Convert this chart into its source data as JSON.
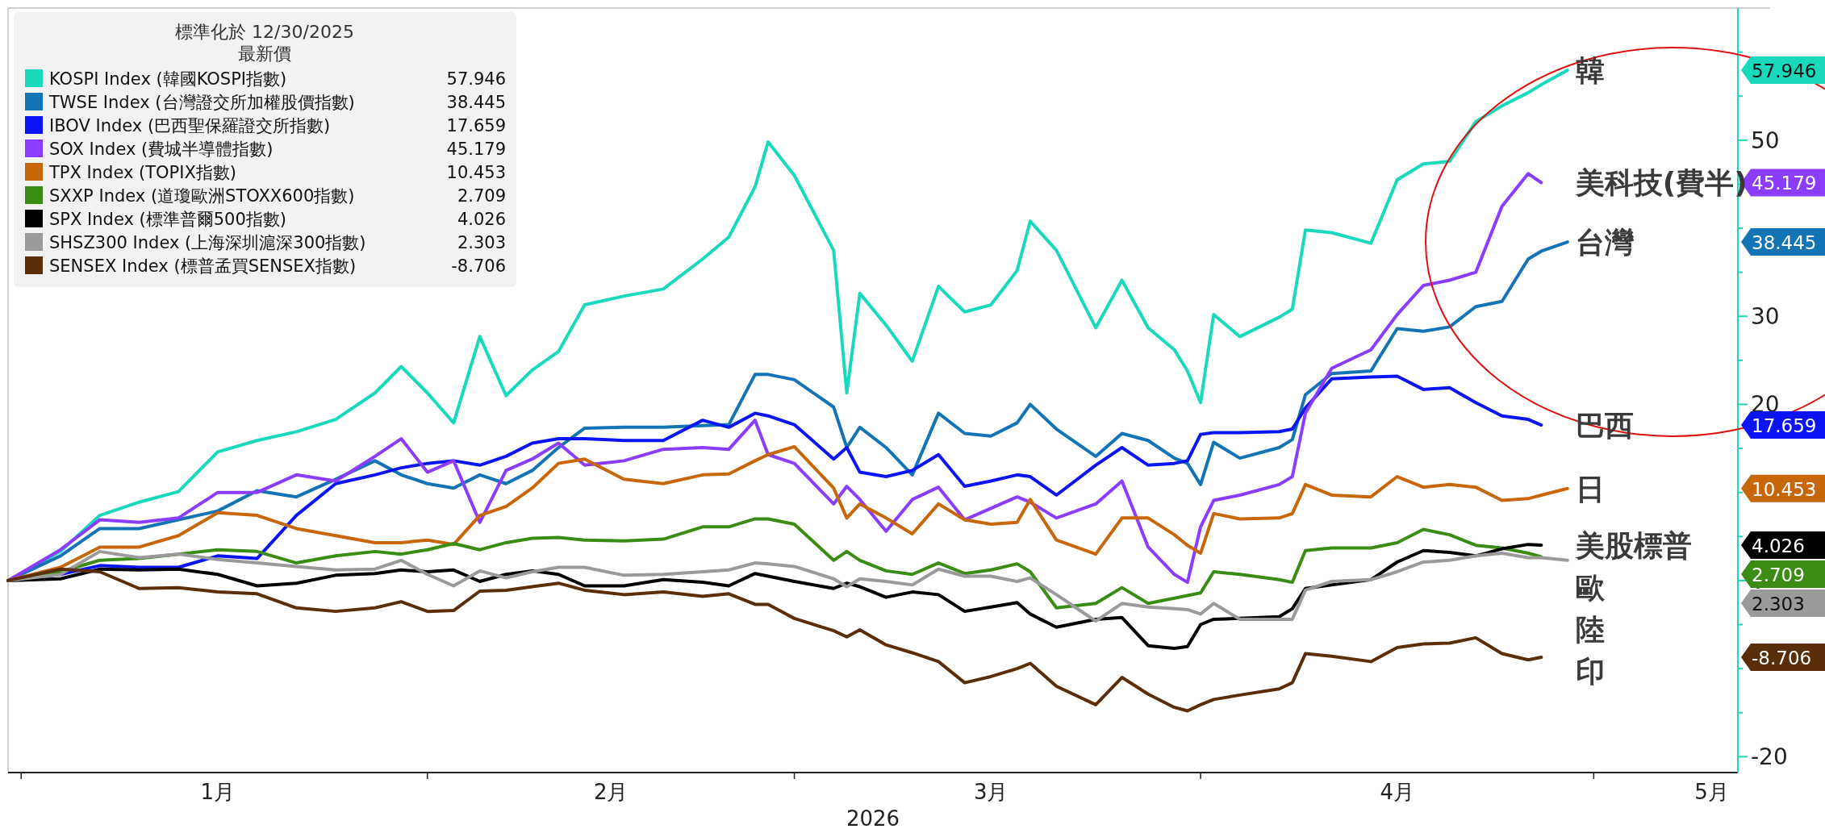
{
  "chart_data": {
    "type": "line",
    "legend_title": "標準化於 12/30/2025\n最新價",
    "legend": "top left",
    "xlabel": "2026",
    "x": [
      "2025-12-31",
      "2026-01-04",
      "2026-01-07",
      "2026-01-10",
      "2026-01-13",
      "2026-01-16",
      "2026-01-19",
      "2026-01-22",
      "2026-01-25",
      "2026-01-28",
      "2026-01-30",
      "2026-02-01",
      "2026-02-03",
      "2026-02-05",
      "2026-02-07",
      "2026-02-09",
      "2026-02-11",
      "2026-02-13",
      "2026-02-16",
      "2026-02-19",
      "2026-02-22",
      "2026-02-24",
      "2026-02-26",
      "2026-02-27",
      "2026-03-01",
      "2026-03-04",
      "2026-03-05",
      "2026-03-06",
      "2026-03-08",
      "2026-03-10",
      "2026-03-12",
      "2026-03-14",
      "2026-03-16",
      "2026-03-18",
      "2026-03-19",
      "2026-03-21",
      "2026-03-24",
      "2026-03-26",
      "2026-03-28",
      "2026-03-30",
      "2026-03-31",
      "2026-04-01",
      "2026-04-02",
      "2026-04-04",
      "2026-04-07",
      "2026-04-08",
      "2026-04-09",
      "2026-04-11",
      "2026-04-14",
      "2026-04-16",
      "2026-04-18",
      "2026-04-20",
      "2026-04-22",
      "2026-04-24",
      "2026-04-26",
      "2026-04-27",
      "2026-04-29"
    ],
    "xlim": [
      "2025-12-31",
      "2026-05-12"
    ],
    "xticks": [
      {
        "value": "2026-01-01",
        "label": null
      },
      {
        "value": "2026-01-16",
        "label": "1月"
      },
      {
        "value": "2026-02-01",
        "label": null
      },
      {
        "value": "2026-02-15",
        "label": "2月"
      },
      {
        "value": "2026-03-01",
        "label": null
      },
      {
        "value": "2026-03-16",
        "label": "3月"
      },
      {
        "value": "2026-04-01",
        "label": null
      },
      {
        "value": "2026-04-16",
        "label": "4月"
      },
      {
        "value": "2026-05-01",
        "label": null
      },
      {
        "value": "2026-05-10",
        "label": "5月"
      }
    ],
    "ylim": [
      -21.8,
      65
    ],
    "yticks": [
      -20,
      {
        "value": -15,
        "label": null
      },
      {
        "value": -10,
        "label": null
      },
      {
        "value": -5,
        "label": null
      },
      0,
      {
        "value": 5,
        "label": null
      },
      {
        "value": 10,
        "label": null
      },
      {
        "value": 15,
        "label": null
      },
      20,
      {
        "value": 25,
        "label": null
      },
      30,
      {
        "value": 35,
        "label": null
      },
      {
        "value": 40,
        "label": null
      },
      {
        "value": 45,
        "label": null
      },
      50,
      {
        "value": 55,
        "label": null
      },
      {
        "value": 60,
        "label": null
      }
    ],
    "series": [
      {
        "name": "KOSPI Index (韓國KOSPI指數)",
        "color": "#19d9bd",
        "values": [
          0,
          3.3,
          7.4,
          8.9,
          10.1,
          14.6,
          15.9,
          16.9,
          18.3,
          21.3,
          24.3,
          21.3,
          17.9,
          27.7,
          21.0,
          23.9,
          26.0,
          31.3,
          32.3,
          33.1,
          36.5,
          39.0,
          44.7,
          49.8,
          46.0,
          37.5,
          21.3,
          32.6,
          29.0,
          24.9,
          33.4,
          30.5,
          31.3,
          35.2,
          40.8,
          37.5,
          28.7,
          34.1,
          28.7,
          26.2,
          23.8,
          20.2,
          30.2,
          27.7,
          29.9,
          30.8,
          39.8,
          39.5,
          38.3,
          45.5,
          47.3,
          47.6,
          52.1,
          53.9,
          55.4,
          56.3,
          57.946
        ]
      },
      {
        "name": "TWSE Index (台灣證交所加權股價指數)",
        "color": "#1274b4",
        "values": [
          0,
          2.8,
          5.9,
          5.9,
          6.9,
          7.9,
          10.2,
          9.5,
          11.5,
          13.6,
          12.0,
          11.0,
          10.5,
          12.0,
          11.0,
          12.5,
          15.1,
          17.3,
          17.4,
          17.4,
          17.6,
          17.7,
          23.4,
          23.4,
          22.8,
          19.7,
          15.1,
          17.4,
          15.1,
          12.0,
          19.0,
          16.7,
          16.4,
          17.9,
          20.0,
          17.2,
          14.1,
          16.7,
          15.9,
          13.9,
          13.3,
          10.9,
          15.7,
          13.9,
          15.1,
          16.0,
          21.1,
          23.5,
          23.8,
          28.6,
          28.3,
          28.8,
          31.1,
          31.7,
          36.5,
          37.4,
          38.445
        ]
      },
      {
        "name": "IBOV Index (巴西聖保羅證交所指數)",
        "color": "#0a14f5",
        "values": [
          0,
          0.7,
          1.7,
          1.5,
          1.5,
          2.8,
          2.5,
          7.4,
          11.0,
          12.0,
          12.8,
          13.3,
          13.6,
          13.1,
          14.1,
          15.6,
          16.1,
          16.1,
          15.9,
          15.9,
          18.2,
          17.4,
          19.0,
          18.7,
          17.7,
          13.8,
          15.1,
          12.3,
          11.8,
          12.5,
          14.3,
          10.7,
          11.3,
          12.0,
          11.8,
          9.7,
          13.1,
          15.1,
          13.1,
          13.3,
          13.6,
          16.6,
          16.8,
          16.8,
          16.9,
          17.2,
          19.6,
          22.9,
          23.1,
          23.2,
          21.7,
          21.9,
          20.2,
          18.7,
          18.3,
          17.659,
          null
        ]
      },
      {
        "name": "SOX Index (費城半導體指數)",
        "color": "#8a3cff",
        "values": [
          0,
          3.5,
          6.9,
          6.6,
          7.1,
          10.0,
          10.0,
          12.0,
          11.3,
          14.1,
          16.1,
          12.3,
          13.6,
          6.6,
          12.5,
          13.8,
          15.6,
          13.1,
          13.6,
          14.9,
          15.1,
          14.9,
          18.2,
          14.3,
          13.3,
          8.7,
          10.7,
          9.2,
          5.6,
          9.2,
          10.6,
          6.9,
          8.2,
          9.5,
          8.9,
          7.1,
          8.7,
          11.3,
          3.8,
          0.7,
          -0.2,
          6.1,
          9.1,
          9.7,
          10.9,
          11.8,
          19.0,
          24.1,
          26.2,
          30.2,
          33.5,
          34.1,
          35.0,
          42.5,
          46.2,
          45.179,
          null
        ]
      },
      {
        "name": "TPX Index (TOPIX指數)",
        "color": "#c8660a",
        "values": [
          0,
          1.5,
          3.8,
          3.8,
          5.1,
          7.7,
          7.4,
          5.9,
          5.1,
          4.3,
          4.3,
          4.6,
          4.1,
          7.4,
          8.4,
          10.5,
          13.3,
          13.8,
          11.5,
          11.0,
          12.0,
          12.1,
          13.6,
          14.3,
          15.2,
          10.5,
          7.1,
          8.7,
          7.1,
          5.3,
          8.7,
          6.9,
          6.4,
          6.6,
          9.2,
          4.6,
          3.0,
          7.1,
          7.1,
          5.2,
          4.0,
          3.1,
          7.6,
          7.0,
          7.1,
          7.6,
          10.9,
          9.7,
          9.5,
          11.8,
          10.6,
          10.9,
          10.6,
          9.1,
          9.3,
          9.7,
          10.453
        ]
      },
      {
        "name": "SXXP Index (道瓊歐洲STOXX600指數)",
        "color": "#3a8c14",
        "values": [
          0,
          1.0,
          2.3,
          2.5,
          3.0,
          3.5,
          3.3,
          2.0,
          2.8,
          3.3,
          3.0,
          3.5,
          4.2,
          3.5,
          4.3,
          4.8,
          4.9,
          4.6,
          4.5,
          4.7,
          6.1,
          6.1,
          7.0,
          7.0,
          6.4,
          2.3,
          3.3,
          2.3,
          1.1,
          0.7,
          2.0,
          0.8,
          1.2,
          1.9,
          1.0,
          -3.1,
          -2.6,
          -0.8,
          -2.6,
          -2.0,
          -1.7,
          -1.4,
          1.0,
          0.7,
          0.1,
          -0.2,
          3.4,
          3.7,
          3.7,
          4.3,
          5.8,
          5.2,
          4.0,
          3.7,
          3.1,
          2.709,
          null
        ]
      },
      {
        "name": "SPX Index (標準普爾500指數)",
        "color": "#000000",
        "values": [
          0,
          0.2,
          1.3,
          1.2,
          1.3,
          0.7,
          -0.6,
          -0.3,
          0.6,
          0.8,
          1.2,
          1.0,
          1.2,
          -0.1,
          0.7,
          1.1,
          0.7,
          -0.6,
          -0.6,
          0.1,
          -0.2,
          -0.6,
          0.8,
          0.5,
          -0.1,
          -0.9,
          -0.3,
          -0.7,
          -1.9,
          -1.3,
          -1.6,
          -3.5,
          -3.0,
          -2.5,
          -3.8,
          -5.3,
          -4.4,
          -4.2,
          -7.4,
          -7.7,
          -7.5,
          -5.0,
          -4.4,
          -4.3,
          -4.1,
          -3.2,
          -0.9,
          -0.5,
          0.1,
          2.1,
          3.4,
          3.2,
          2.8,
          3.6,
          4.1,
          4.026,
          null
        ]
      },
      {
        "name": "SHSZ300 Index (上海深圳滬深300指數)",
        "color": "#9a9a9a",
        "values": [
          0,
          0.7,
          3.3,
          2.6,
          3.0,
          2.4,
          2.0,
          1.6,
          1.2,
          1.3,
          2.3,
          0.7,
          -0.6,
          1.1,
          0.3,
          1.0,
          1.5,
          1.5,
          0.6,
          0.7,
          1.0,
          1.2,
          2.0,
          1.9,
          1.6,
          0.2,
          -0.7,
          0.2,
          -0.1,
          -0.5,
          1.3,
          0.5,
          0.5,
          -0.1,
          0.3,
          -1.6,
          -4.6,
          -2.6,
          -3.0,
          -3.2,
          -3.3,
          -3.8,
          -2.6,
          -4.4,
          -4.4,
          -4.4,
          -1.1,
          -0.1,
          0.1,
          1.0,
          2.1,
          2.3,
          2.8,
          3.1,
          2.6,
          2.6,
          2.303
        ]
      },
      {
        "name": "SENSEX Index (標普孟買SENSEX指數)",
        "color": "#5a2e08",
        "values": [
          0,
          1.3,
          1.0,
          -0.9,
          -0.8,
          -1.3,
          -1.5,
          -3.1,
          -3.5,
          -3.1,
          -2.4,
          -3.5,
          -3.4,
          -1.2,
          -1.1,
          -0.7,
          -0.3,
          -1.1,
          -1.6,
          -1.3,
          -1.8,
          -1.5,
          -2.7,
          -2.7,
          -4.3,
          -5.7,
          -6.4,
          -5.6,
          -7.3,
          -8.2,
          -9.2,
          -11.6,
          -10.9,
          -10.0,
          -9.4,
          -12.0,
          -14.1,
          -11.0,
          -12.9,
          -14.4,
          -14.8,
          -14.1,
          -13.5,
          -13.0,
          -12.3,
          -11.6,
          -8.3,
          -8.6,
          -9.2,
          -7.6,
          -7.2,
          -7.1,
          -6.5,
          -8.3,
          -9.0,
          -8.706,
          null
        ]
      }
    ],
    "annotations": [
      "57.946",
      "38.445",
      "17.659",
      "45.179",
      "10.453",
      "2.709",
      "4.026",
      "2.303",
      "-8.706",
      "韓",
      "美科技(費半)",
      "台灣",
      "巴西",
      "日",
      "美股標普",
      "歐",
      "陸",
      "印"
    ]
  }
}
